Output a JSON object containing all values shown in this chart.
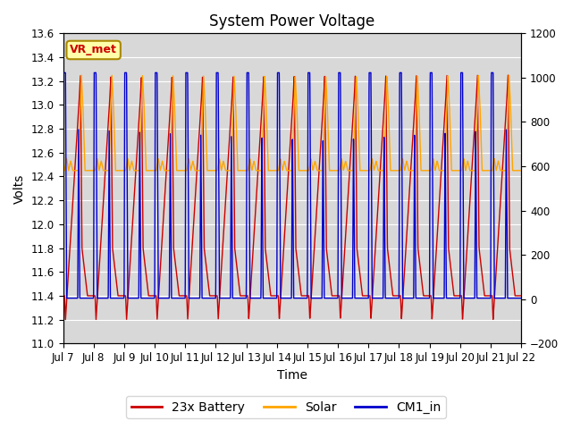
{
  "title": "System Power Voltage",
  "xlabel": "Time",
  "ylabel": "Volts",
  "ylim_left": [
    11.0,
    13.6
  ],
  "ylim_right": [
    -200,
    1200
  ],
  "yticks_left": [
    11.0,
    11.2,
    11.4,
    11.6,
    11.8,
    12.0,
    12.2,
    12.4,
    12.6,
    12.8,
    13.0,
    13.2,
    13.4,
    13.6
  ],
  "yticks_right": [
    -200,
    0,
    200,
    400,
    600,
    800,
    1000,
    1200
  ],
  "xtick_labels": [
    "Jul 7",
    "Jul 8",
    "Jul 9",
    "Jul 10",
    "Jul 11",
    "Jul 12",
    "Jul 13",
    "Jul 14",
    "Jul 15",
    "Jul 16",
    "Jul 17",
    "Jul 18",
    "Jul 19",
    "Jul 20",
    "Jul 21",
    "Jul 22"
  ],
  "n_cycles": 15,
  "plot_bg_color": "#d8d8d8",
  "fig_bg_color": "#ffffff",
  "legend_entries": [
    "23x Battery",
    "Solar",
    "CM1_in"
  ],
  "line_colors": [
    "#cc0000",
    "#ffa500",
    "#0000cc"
  ],
  "vr_met_label": "VR_met",
  "title_fontsize": 12,
  "label_fontsize": 10,
  "tick_fontsize": 8.5,
  "legend_fontsize": 10,
  "grid_color": "#ffffff",
  "bat_min": 11.2,
  "bat_max": 13.25,
  "sol_min": 12.4,
  "sol_max": 13.3,
  "cm1_min": 11.38,
  "cm1_max": 13.27
}
